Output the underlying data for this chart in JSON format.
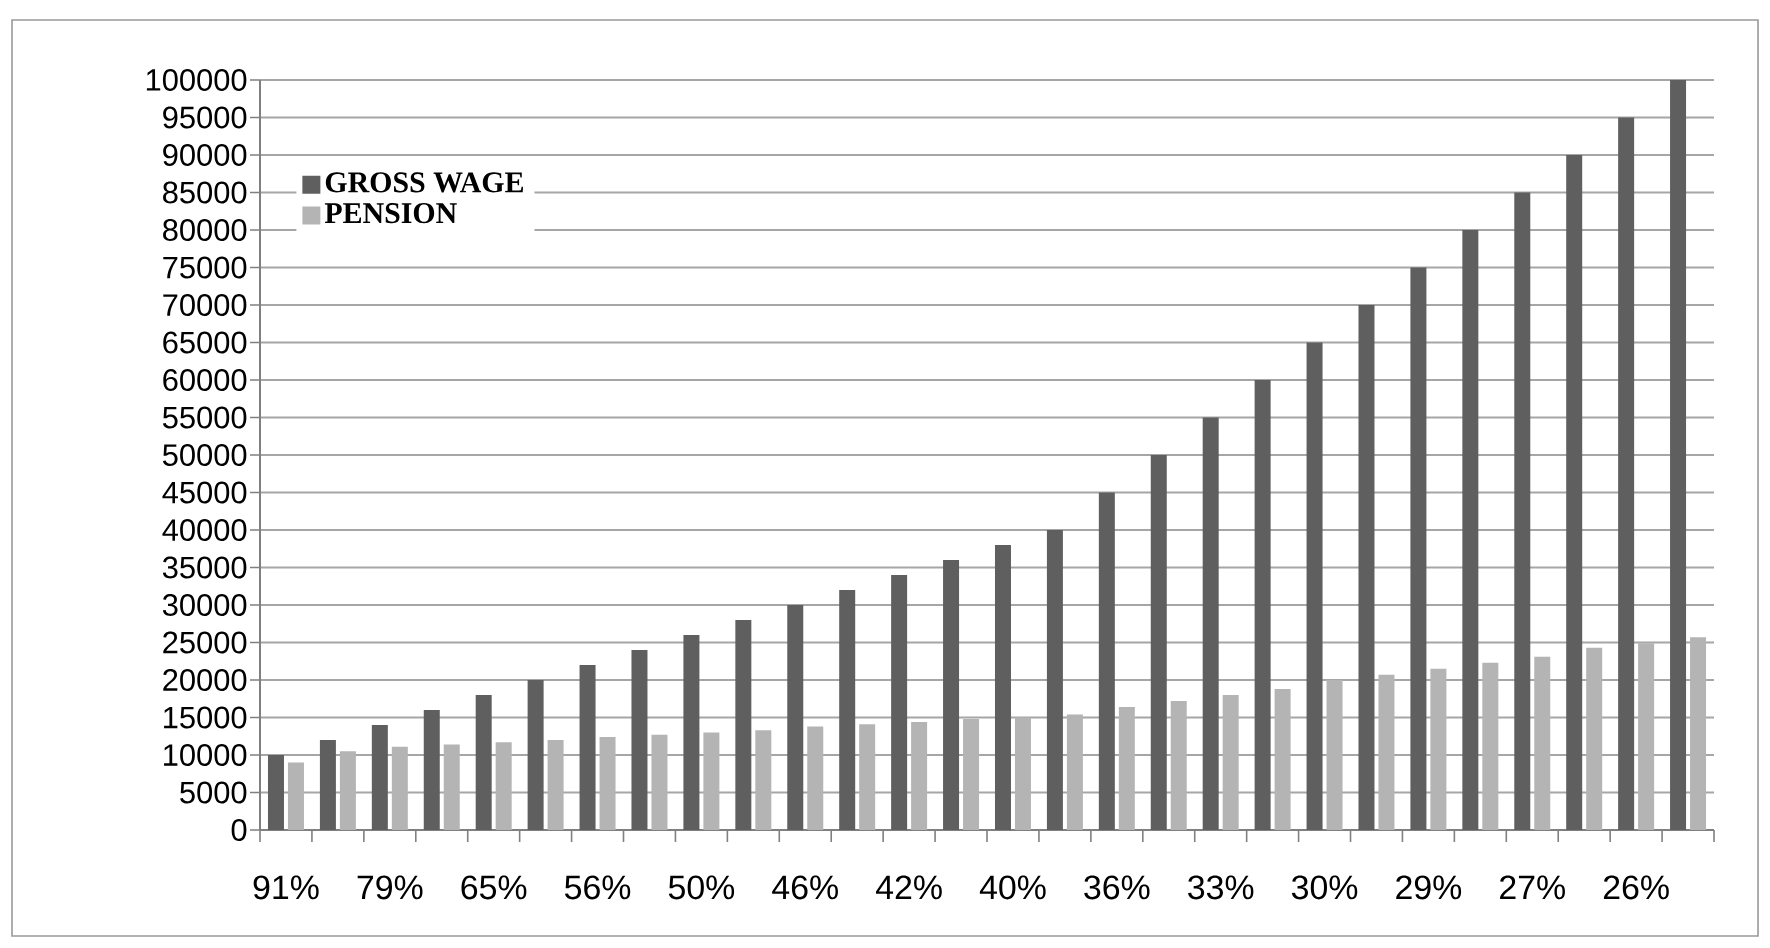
{
  "chart_data": {
    "type": "bar",
    "categories": [
      "91%",
      null,
      "79%",
      null,
      "65%",
      null,
      "56%",
      null,
      "50%",
      null,
      "46%",
      null,
      "42%",
      null,
      "40%",
      null,
      "36%",
      null,
      "33%",
      null,
      "30%",
      null,
      "29%",
      null,
      "27%",
      null,
      "26%",
      null
    ],
    "series": [
      {
        "name": "GROSS WAGE",
        "color": "#5f5f5f",
        "values": [
          10000,
          12000,
          14000,
          16000,
          18000,
          20000,
          22000,
          24000,
          26000,
          28000,
          30000,
          32000,
          34000,
          36000,
          38000,
          40000,
          45000,
          50000,
          55000,
          60000,
          65000,
          70000,
          75000,
          80000,
          85000,
          90000,
          95000,
          100000
        ]
      },
      {
        "name": "PENSION",
        "color": "#b4b4b4",
        "values": [
          9000,
          10500,
          11100,
          11400,
          11700,
          12000,
          12400,
          12700,
          13000,
          13300,
          13800,
          14100,
          14400,
          14800,
          15000,
          15400,
          16400,
          17200,
          18000,
          18800,
          20000,
          20700,
          21500,
          22300,
          23100,
          24300,
          24900,
          25700
        ]
      }
    ],
    "ylim": [
      0,
      100000
    ],
    "yticks": [
      0,
      5000,
      10000,
      15000,
      20000,
      25000,
      30000,
      35000,
      40000,
      45000,
      50000,
      55000,
      60000,
      65000,
      70000,
      75000,
      80000,
      85000,
      90000,
      95000,
      100000
    ],
    "grid": "y",
    "legend": "top left"
  }
}
